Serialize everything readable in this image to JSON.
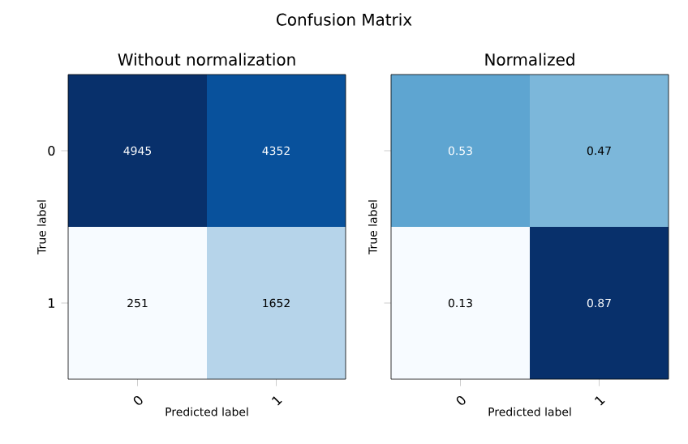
{
  "chart_data": [
    {
      "type": "heatmap",
      "title": "Without normalization",
      "xlabel": "Predicted label",
      "ylabel": "True label",
      "categories": [
        "0",
        "1"
      ],
      "y_categories": [
        "0",
        "1"
      ],
      "cells": [
        [
          4945,
          4352
        ],
        [
          251,
          1652
        ]
      ],
      "data_labels": true,
      "annotations": [
        "Confusion Matrix"
      ]
    },
    {
      "type": "heatmap",
      "title": "Normalized",
      "xlabel": "Predicted label",
      "ylabel": "True label",
      "categories": [
        "0",
        "1"
      ],
      "y_categories": [
        "0",
        "1"
      ],
      "cells": [
        [
          0.53,
          0.47
        ],
        [
          0.13,
          0.87
        ]
      ],
      "data_labels": true,
      "tick_labels": "x"
    }
  ]
}
